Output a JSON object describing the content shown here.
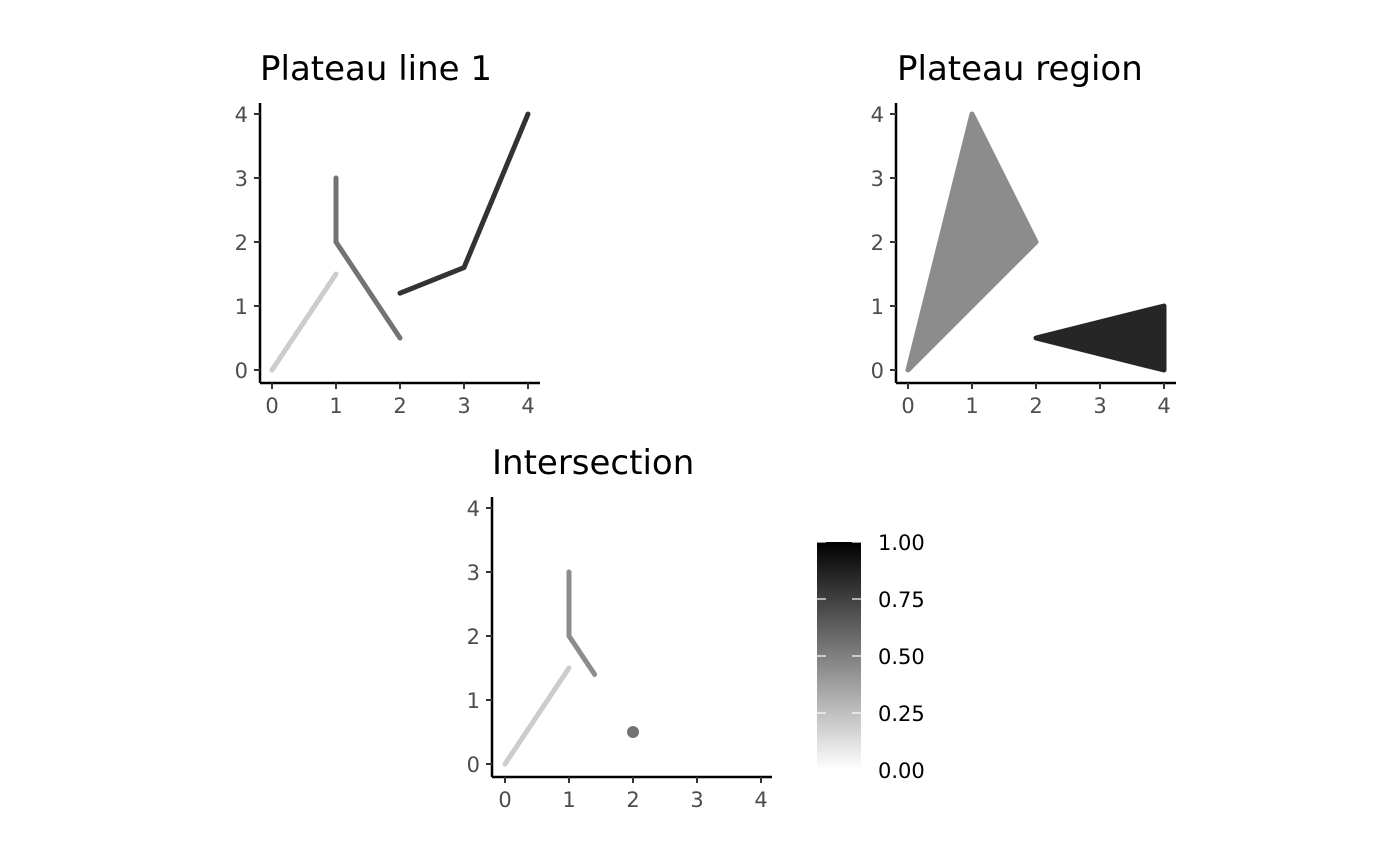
{
  "chart_data": [
    {
      "type": "line",
      "title": "Plateau line 1",
      "xlim": [
        0,
        4
      ],
      "ylim": [
        0,
        4
      ],
      "x_ticks": [
        "0",
        "1",
        "2",
        "3",
        "4"
      ],
      "y_ticks": [
        "0",
        "1",
        "2",
        "3",
        "4"
      ],
      "grid": false,
      "series": [
        {
          "value": 0.2,
          "points": [
            [
              0,
              0
            ],
            [
              1,
              1.5
            ]
          ]
        },
        {
          "value": 0.55,
          "points": [
            [
              1,
              3
            ],
            [
              1,
              2
            ],
            [
              2,
              0.5
            ]
          ]
        },
        {
          "value": 0.8,
          "points": [
            [
              2,
              1.2
            ],
            [
              3,
              1.6
            ],
            [
              4,
              4
            ]
          ]
        }
      ]
    },
    {
      "type": "area",
      "title": "Plateau region",
      "xlim": [
        0,
        4
      ],
      "ylim": [
        0,
        4
      ],
      "x_ticks": [
        "0",
        "1",
        "2",
        "3",
        "4"
      ],
      "y_ticks": [
        "0",
        "1",
        "2",
        "3",
        "4"
      ],
      "grid": false,
      "series": [
        {
          "value": 0.45,
          "polygon": [
            [
              0,
              0
            ],
            [
              1,
              4
            ],
            [
              2,
              2
            ]
          ]
        },
        {
          "value": 0.85,
          "polygon": [
            [
              2,
              0.5
            ],
            [
              4,
              1
            ],
            [
              4,
              0
            ]
          ]
        }
      ]
    },
    {
      "type": "line",
      "title": "Intersection",
      "xlim": [
        0,
        4
      ],
      "ylim": [
        0,
        4
      ],
      "x_ticks": [
        "0",
        "1",
        "2",
        "3",
        "4"
      ],
      "y_ticks": [
        "0",
        "1",
        "2",
        "3",
        "4"
      ],
      "grid": false,
      "series": [
        {
          "value": 0.2,
          "points": [
            [
              0,
              0
            ],
            [
              1,
              1.5
            ]
          ]
        },
        {
          "value": 0.45,
          "points": [
            [
              1,
              3
            ],
            [
              1,
              2
            ],
            [
              1.4,
              1.4
            ]
          ]
        },
        {
          "value": 0.55,
          "point": [
            2,
            0.5
          ]
        }
      ]
    }
  ],
  "legend": {
    "type": "colorbar",
    "range": [
      0,
      1
    ],
    "labels": [
      "0.00",
      "0.25",
      "0.50",
      "0.75",
      "1.00"
    ],
    "low_color": "#ffffff",
    "high_color": "#000000"
  },
  "colors": {
    "axis": "#000000",
    "tick_label": "#4d4d4d",
    "background": "#ffffff"
  }
}
